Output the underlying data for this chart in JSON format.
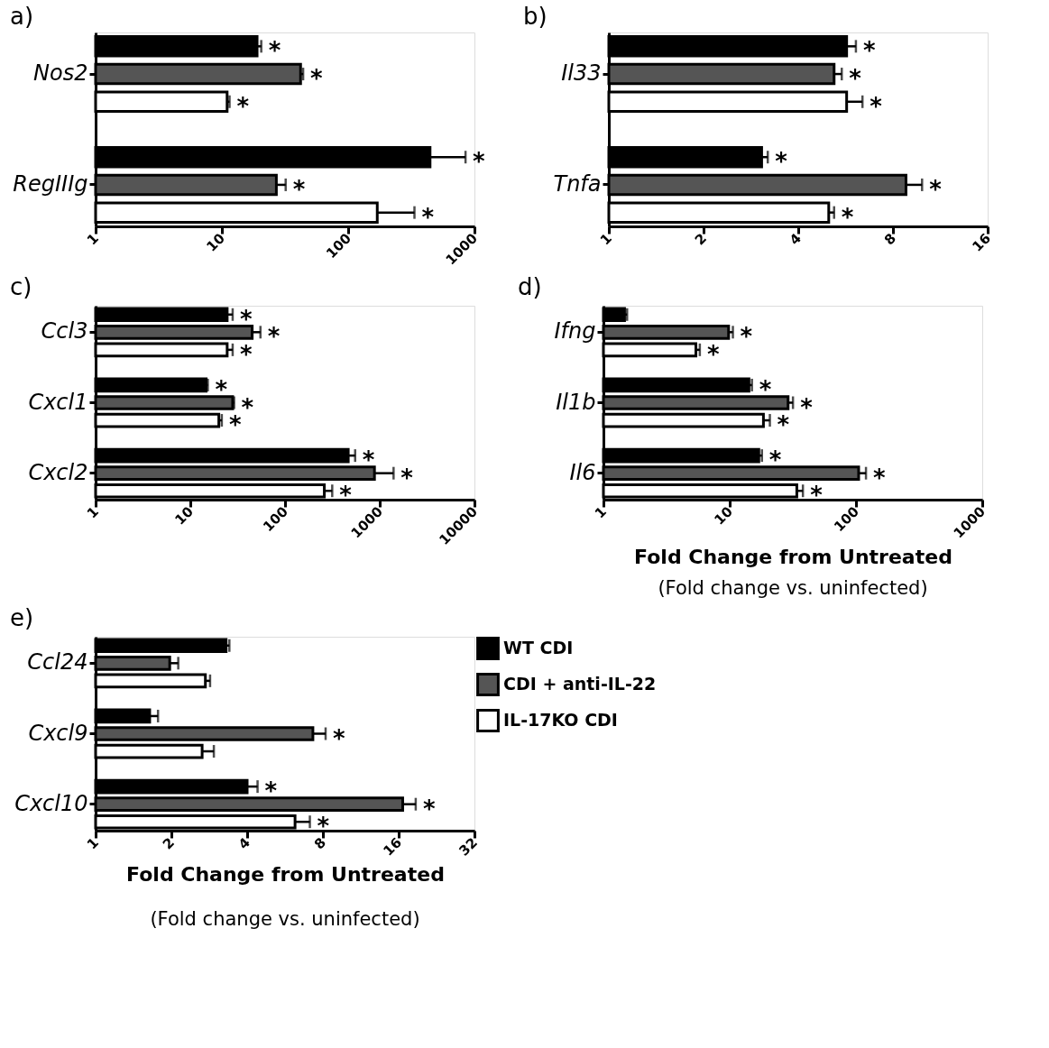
{
  "chart_data": [
    {
      "type": "bar",
      "orientation": "horizontal",
      "title": "a)",
      "categories": [
        "Nos2",
        "RegIIIg"
      ],
      "log": "x",
      "xlim": [
        1,
        1000
      ],
      "xticks": [
        1,
        10,
        100,
        1000
      ],
      "grid": false,
      "legend": false,
      "series": [
        {
          "color": "#000000",
          "values": [
            19,
            445
          ],
          "errors": [
            [
              19,
              20.5
            ],
            [
              445,
              850
            ]
          ],
          "value_labels": [
            "*",
            "*"
          ]
        },
        {
          "color": "#555555",
          "values": [
            42,
            27
          ],
          "errors": [
            [
              42,
              44
            ],
            [
              27,
              32
            ]
          ],
          "value_labels": [
            "*",
            "*"
          ]
        },
        {
          "color": "#ffffff",
          "values": [
            11,
            170
          ],
          "errors": [
            [
              11,
              11.5
            ],
            [
              170,
              335
            ]
          ],
          "value_labels": [
            "*",
            "*"
          ]
        }
      ]
    },
    {
      "type": "bar",
      "orientation": "horizontal",
      "title": "b)",
      "categories": [
        "Il33",
        "Tnfa"
      ],
      "log": "x",
      "xlim": [
        1,
        16
      ],
      "xticks": [
        1,
        2,
        4,
        8,
        16
      ],
      "grid": false,
      "legend": false,
      "series": [
        {
          "color": "#000000",
          "values": [
            5.7,
            3.06
          ],
          "errors": [
            [
              5.7,
              6.1
            ],
            [
              3.06,
              3.2
            ]
          ],
          "value_labels": [
            "*",
            "*"
          ]
        },
        {
          "color": "#555555",
          "values": [
            5.2,
            8.8
          ],
          "errors": [
            [
              5.2,
              5.5
            ],
            [
              8.8,
              9.9
            ]
          ],
          "value_labels": [
            "*",
            "*"
          ]
        },
        {
          "color": "#ffffff",
          "values": [
            5.7,
            5.0
          ],
          "errors": [
            [
              5.7,
              6.4
            ],
            [
              5.0,
              5.2
            ]
          ],
          "value_labels": [
            "*",
            "*"
          ]
        }
      ]
    },
    {
      "type": "bar",
      "orientation": "horizontal",
      "title": "c)",
      "categories": [
        "Ccl3",
        "Cxcl1",
        "Cxcl2"
      ],
      "log": "x",
      "xlim": [
        1,
        10000
      ],
      "xticks": [
        1,
        10,
        100,
        1000,
        10000
      ],
      "grid": false,
      "legend": false,
      "series": [
        {
          "color": "#000000",
          "values": [
            24.5,
            14.7,
            465
          ],
          "errors": [
            [
              24.5,
              28
            ],
            [
              14.7,
              15.3
            ],
            [
              465,
              550
            ]
          ],
          "value_labels": [
            "*",
            "*",
            "*"
          ]
        },
        {
          "color": "#555555",
          "values": [
            45,
            28,
            880
          ],
          "errors": [
            [
              45,
              55
            ],
            [
              28,
              29
            ],
            [
              880,
              1400
            ]
          ],
          "value_labels": [
            "*",
            "*",
            "*"
          ]
        },
        {
          "color": "#ffffff",
          "values": [
            24.5,
            20,
            260
          ],
          "errors": [
            [
              24.5,
              28
            ],
            [
              20,
              21.5
            ],
            [
              260,
              315
            ]
          ],
          "value_labels": [
            "*",
            "*",
            "*"
          ]
        }
      ]
    },
    {
      "type": "bar",
      "orientation": "horizontal",
      "title": "d)",
      "categories": [
        "Ifng",
        "Il1b",
        "Il6"
      ],
      "log": "x",
      "xlim": [
        1,
        1000
      ],
      "xticks": [
        1,
        10,
        100,
        1000
      ],
      "grid": false,
      "legend": false,
      "xlabel": "Fold Change from Untreated",
      "annotations": [
        "(Fold change vs. uninfected)"
      ],
      "series": [
        {
          "color": "#000000",
          "values": [
            1.47,
            14.2,
            17
          ],
          "errors": [
            [
              1.47,
              1.54
            ],
            [
              14.2,
              15
            ],
            [
              17,
              18
            ]
          ],
          "value_labels": [
            null,
            "*",
            "*"
          ]
        },
        {
          "color": "#555555",
          "values": [
            9.8,
            29,
            105
          ],
          "errors": [
            [
              9.8,
              10.6
            ],
            [
              29,
              31.7
            ],
            [
              105,
              120
            ]
          ],
          "value_labels": [
            "*",
            "*",
            "*"
          ]
        },
        {
          "color": "#ffffff",
          "values": [
            5.4,
            18.5,
            34
          ],
          "errors": [
            [
              5.4,
              5.8
            ],
            [
              18.5,
              20.8
            ],
            [
              34,
              38
            ]
          ],
          "value_labels": [
            "*",
            "*",
            "*"
          ]
        }
      ]
    },
    {
      "type": "bar",
      "orientation": "horizontal",
      "title": "e)",
      "categories": [
        "Ccl24",
        "Cxcl9",
        "Cxcl10"
      ],
      "log": "x",
      "xlim": [
        1,
        32
      ],
      "xticks": [
        1,
        2,
        4,
        8,
        16,
        32
      ],
      "grid": false,
      "legend": "right",
      "xlabel": "Fold Change from Untreated",
      "annotations": [
        "(Fold change vs. uninfected)"
      ],
      "series": [
        {
          "name": "WT CDI",
          "color": "#000000",
          "values": [
            3.3,
            1.64,
            4.0
          ],
          "errors": [
            [
              3.3,
              3.4
            ],
            [
              1.64,
              1.77
            ],
            [
              4.0,
              4.4
            ]
          ],
          "value_labels": [
            null,
            null,
            "*"
          ]
        },
        {
          "name": "CDI + anti-IL-22",
          "color": "#555555",
          "values": [
            1.97,
            7.3,
            16.6
          ],
          "errors": [
            [
              1.97,
              2.13
            ],
            [
              7.3,
              8.2
            ],
            [
              16.6,
              18.7
            ]
          ],
          "value_labels": [
            null,
            "*",
            "*"
          ]
        },
        {
          "name": "IL-17KO CDI",
          "color": "#ffffff",
          "values": [
            2.73,
            2.65,
            6.2
          ],
          "errors": [
            [
              2.73,
              2.85
            ],
            [
              2.65,
              2.95
            ],
            [
              6.2,
              7.1
            ]
          ],
          "value_labels": [
            null,
            null,
            "*"
          ]
        }
      ]
    }
  ]
}
